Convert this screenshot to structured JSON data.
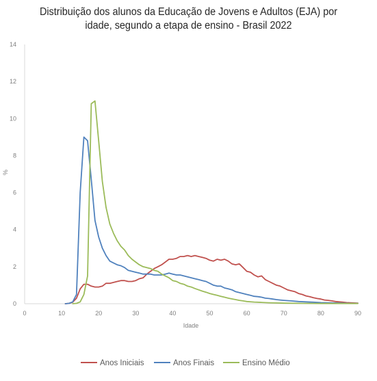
{
  "chart_data": {
    "type": "line",
    "title_line1": "Distribuição dos alunos da Educação de Jovens e Adultos (EJA) por",
    "title_line2": "idade, segundo a etapa de ensino - Brasil 2022",
    "xlabel": "Idade",
    "ylabel": "%",
    "xlim": [
      0,
      90
    ],
    "ylim": [
      0,
      14
    ],
    "x_ticks": [
      0,
      10,
      20,
      30,
      40,
      50,
      60,
      70,
      80,
      90
    ],
    "y_ticks": [
      0,
      2,
      4,
      6,
      8,
      10,
      12,
      14
    ],
    "grid": false,
    "legend_position": "bottom",
    "series": [
      {
        "name": "Anos Iniciais",
        "color": "#c0504d",
        "points": [
          [
            11,
            0
          ],
          [
            12,
            0.02
          ],
          [
            13,
            0.08
          ],
          [
            14,
            0.3
          ],
          [
            15,
            0.8
          ],
          [
            16,
            1.05
          ],
          [
            17,
            1.05
          ],
          [
            18,
            0.95
          ],
          [
            19,
            0.9
          ],
          [
            20,
            0.9
          ],
          [
            21,
            0.95
          ],
          [
            22,
            1.1
          ],
          [
            23,
            1.1
          ],
          [
            24,
            1.15
          ],
          [
            25,
            1.2
          ],
          [
            26,
            1.25
          ],
          [
            27,
            1.25
          ],
          [
            28,
            1.2
          ],
          [
            29,
            1.2
          ],
          [
            30,
            1.25
          ],
          [
            31,
            1.35
          ],
          [
            32,
            1.4
          ],
          [
            33,
            1.6
          ],
          [
            34,
            1.75
          ],
          [
            35,
            1.9
          ],
          [
            36,
            2.0
          ],
          [
            37,
            2.1
          ],
          [
            38,
            2.25
          ],
          [
            39,
            2.4
          ],
          [
            40,
            2.4
          ],
          [
            41,
            2.45
          ],
          [
            42,
            2.55
          ],
          [
            43,
            2.55
          ],
          [
            44,
            2.6
          ],
          [
            45,
            2.55
          ],
          [
            46,
            2.6
          ],
          [
            47,
            2.55
          ],
          [
            48,
            2.5
          ],
          [
            49,
            2.45
          ],
          [
            50,
            2.35
          ],
          [
            51,
            2.3
          ],
          [
            52,
            2.4
          ],
          [
            53,
            2.35
          ],
          [
            54,
            2.4
          ],
          [
            55,
            2.3
          ],
          [
            56,
            2.15
          ],
          [
            57,
            2.1
          ],
          [
            58,
            2.15
          ],
          [
            59,
            1.95
          ],
          [
            60,
            1.75
          ],
          [
            61,
            1.7
          ],
          [
            62,
            1.55
          ],
          [
            63,
            1.45
          ],
          [
            64,
            1.5
          ],
          [
            65,
            1.3
          ],
          [
            66,
            1.2
          ],
          [
            67,
            1.1
          ],
          [
            68,
            1.0
          ],
          [
            69,
            0.95
          ],
          [
            70,
            0.85
          ],
          [
            71,
            0.75
          ],
          [
            72,
            0.7
          ],
          [
            73,
            0.65
          ],
          [
            74,
            0.55
          ],
          [
            75,
            0.5
          ],
          [
            76,
            0.42
          ],
          [
            77,
            0.38
          ],
          [
            78,
            0.32
          ],
          [
            79,
            0.28
          ],
          [
            80,
            0.25
          ],
          [
            81,
            0.2
          ],
          [
            82,
            0.18
          ],
          [
            83,
            0.15
          ],
          [
            84,
            0.12
          ],
          [
            85,
            0.1
          ],
          [
            86,
            0.08
          ],
          [
            87,
            0.06
          ],
          [
            88,
            0.05
          ],
          [
            89,
            0.04
          ],
          [
            90,
            0.03
          ]
        ]
      },
      {
        "name": "Anos Finais",
        "color": "#4f81bd",
        "points": [
          [
            11,
            0
          ],
          [
            12,
            0.02
          ],
          [
            13,
            0.1
          ],
          [
            14,
            0.5
          ],
          [
            15,
            6.0
          ],
          [
            16,
            9.0
          ],
          [
            17,
            8.8
          ],
          [
            18,
            6.7
          ],
          [
            19,
            4.5
          ],
          [
            20,
            3.6
          ],
          [
            21,
            3.0
          ],
          [
            22,
            2.6
          ],
          [
            23,
            2.3
          ],
          [
            24,
            2.2
          ],
          [
            25,
            2.1
          ],
          [
            26,
            2.05
          ],
          [
            27,
            1.95
          ],
          [
            28,
            1.8
          ],
          [
            29,
            1.75
          ],
          [
            30,
            1.7
          ],
          [
            31,
            1.65
          ],
          [
            32,
            1.6
          ],
          [
            33,
            1.6
          ],
          [
            34,
            1.6
          ],
          [
            35,
            1.55
          ],
          [
            36,
            1.55
          ],
          [
            37,
            1.55
          ],
          [
            38,
            1.6
          ],
          [
            39,
            1.65
          ],
          [
            40,
            1.6
          ],
          [
            41,
            1.55
          ],
          [
            42,
            1.55
          ],
          [
            43,
            1.5
          ],
          [
            44,
            1.45
          ],
          [
            45,
            1.4
          ],
          [
            46,
            1.35
          ],
          [
            47,
            1.3
          ],
          [
            48,
            1.25
          ],
          [
            49,
            1.2
          ],
          [
            50,
            1.1
          ],
          [
            51,
            1.0
          ],
          [
            52,
            0.95
          ],
          [
            53,
            0.95
          ],
          [
            54,
            0.85
          ],
          [
            55,
            0.8
          ],
          [
            56,
            0.75
          ],
          [
            57,
            0.65
          ],
          [
            58,
            0.6
          ],
          [
            59,
            0.55
          ],
          [
            60,
            0.5
          ],
          [
            61,
            0.45
          ],
          [
            62,
            0.4
          ],
          [
            63,
            0.38
          ],
          [
            64,
            0.35
          ],
          [
            65,
            0.3
          ],
          [
            66,
            0.28
          ],
          [
            67,
            0.25
          ],
          [
            68,
            0.22
          ],
          [
            69,
            0.2
          ],
          [
            70,
            0.18
          ],
          [
            72,
            0.15
          ],
          [
            74,
            0.12
          ],
          [
            76,
            0.1
          ],
          [
            78,
            0.08
          ],
          [
            80,
            0.06
          ],
          [
            82,
            0.05
          ],
          [
            84,
            0.04
          ],
          [
            86,
            0.03
          ],
          [
            88,
            0.02
          ],
          [
            90,
            0.02
          ]
        ]
      },
      {
        "name": "Ensino Médio",
        "color": "#9bbb59",
        "points": [
          [
            13,
            0
          ],
          [
            14,
            0.02
          ],
          [
            15,
            0.1
          ],
          [
            16,
            0.5
          ],
          [
            17,
            1.5
          ],
          [
            18,
            10.8
          ],
          [
            19,
            10.95
          ],
          [
            20,
            8.8
          ],
          [
            21,
            6.6
          ],
          [
            22,
            5.2
          ],
          [
            23,
            4.3
          ],
          [
            24,
            3.8
          ],
          [
            25,
            3.4
          ],
          [
            26,
            3.1
          ],
          [
            27,
            2.9
          ],
          [
            28,
            2.6
          ],
          [
            29,
            2.4
          ],
          [
            30,
            2.25
          ],
          [
            31,
            2.1
          ],
          [
            32,
            2.0
          ],
          [
            33,
            1.95
          ],
          [
            34,
            1.9
          ],
          [
            35,
            1.8
          ],
          [
            36,
            1.75
          ],
          [
            37,
            1.6
          ],
          [
            38,
            1.5
          ],
          [
            39,
            1.4
          ],
          [
            40,
            1.25
          ],
          [
            41,
            1.2
          ],
          [
            42,
            1.1
          ],
          [
            43,
            1.05
          ],
          [
            44,
            0.95
          ],
          [
            45,
            0.9
          ],
          [
            46,
            0.82
          ],
          [
            47,
            0.75
          ],
          [
            48,
            0.68
          ],
          [
            49,
            0.62
          ],
          [
            50,
            0.55
          ],
          [
            51,
            0.5
          ],
          [
            52,
            0.45
          ],
          [
            53,
            0.4
          ],
          [
            54,
            0.35
          ],
          [
            55,
            0.3
          ],
          [
            56,
            0.26
          ],
          [
            57,
            0.22
          ],
          [
            58,
            0.18
          ],
          [
            59,
            0.15
          ],
          [
            60,
            0.12
          ],
          [
            62,
            0.09
          ],
          [
            64,
            0.07
          ],
          [
            66,
            0.05
          ],
          [
            68,
            0.04
          ],
          [
            70,
            0.03
          ],
          [
            75,
            0.02
          ],
          [
            80,
            0.01
          ],
          [
            90,
            0.01
          ]
        ]
      }
    ]
  }
}
